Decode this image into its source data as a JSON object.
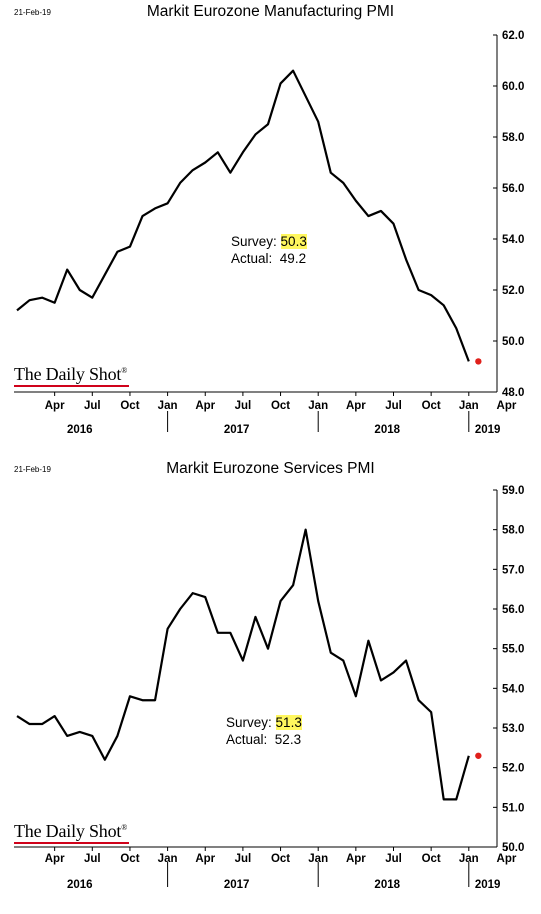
{
  "chart_data": [
    {
      "type": "line",
      "date_stamp": "21-Feb-19",
      "title": "Markit Eurozone Manufacturing PMI",
      "brand": "The Daily Shot",
      "brand_mark": "®",
      "annotation": {
        "survey_label": "Survey:",
        "survey_value": "50.3",
        "actual_label": "Actual:",
        "actual_value": "49.2"
      },
      "y_axis": {
        "side": "right",
        "min": 48,
        "max": 62,
        "ticks": [
          "62.0",
          "60.0",
          "58.0",
          "56.0",
          "54.0",
          "52.0",
          "50.0",
          "48.0"
        ]
      },
      "x_axis": {
        "month_ticks": [
          "Apr",
          "Jul",
          "Oct",
          "Jan",
          "Apr",
          "Jul",
          "Oct",
          "Jan",
          "Apr",
          "Jul",
          "Oct",
          "Jan",
          "Apr"
        ],
        "years": [
          "2016",
          "2017",
          "2018",
          "2019"
        ]
      },
      "grid": false,
      "series": [
        {
          "x": [
            "2016-01",
            "2016-02",
            "2016-03",
            "2016-04",
            "2016-05",
            "2016-06",
            "2016-07",
            "2016-08",
            "2016-09",
            "2016-10",
            "2016-11",
            "2016-12",
            "2017-01",
            "2017-02",
            "2017-03",
            "2017-04",
            "2017-05",
            "2017-06",
            "2017-07",
            "2017-08",
            "2017-09",
            "2017-10",
            "2017-11",
            "2017-12",
            "2018-01",
            "2018-02",
            "2018-03",
            "2018-04",
            "2018-05",
            "2018-06",
            "2018-07",
            "2018-08",
            "2018-09",
            "2018-10",
            "2018-11",
            "2018-12",
            "2019-01",
            "2019-02"
          ],
          "values": [
            51.2,
            51.6,
            51.7,
            51.5,
            52.8,
            52.0,
            51.7,
            52.6,
            53.5,
            53.7,
            54.9,
            55.2,
            55.4,
            56.2,
            56.7,
            57.0,
            57.4,
            56.6,
            57.4,
            58.1,
            58.5,
            60.1,
            60.6,
            59.6,
            58.6,
            56.6,
            56.2,
            55.5,
            54.9,
            55.1,
            54.6,
            53.2,
            52.0,
            51.8,
            51.4,
            50.5,
            49.2,
            49.2
          ],
          "color": "#000000",
          "last_point_color": "#e0201b"
        }
      ]
    },
    {
      "type": "line",
      "date_stamp": "21-Feb-19",
      "title": "Markit Eurozone Services PMI",
      "brand": "The Daily Shot",
      "brand_mark": "®",
      "annotation": {
        "survey_label": "Survey:",
        "survey_value": "51.3",
        "actual_label": "Actual:",
        "actual_value": "52.3"
      },
      "y_axis": {
        "side": "right",
        "min": 50,
        "max": 59,
        "ticks": [
          "59.0",
          "58.0",
          "57.0",
          "56.0",
          "55.0",
          "54.0",
          "53.0",
          "52.0",
          "51.0",
          "50.0"
        ]
      },
      "x_axis": {
        "month_ticks": [
          "Apr",
          "Jul",
          "Oct",
          "Jan",
          "Apr",
          "Jul",
          "Oct",
          "Jan",
          "Apr",
          "Jul",
          "Oct",
          "Jan",
          "Apr"
        ],
        "years": [
          "2016",
          "2017",
          "2018",
          "2019"
        ]
      },
      "grid": false,
      "series": [
        {
          "x": [
            "2016-01",
            "2016-02",
            "2016-03",
            "2016-04",
            "2016-05",
            "2016-06",
            "2016-07",
            "2016-08",
            "2016-09",
            "2016-10",
            "2016-11",
            "2016-12",
            "2017-01",
            "2017-02",
            "2017-03",
            "2017-04",
            "2017-05",
            "2017-06",
            "2017-07",
            "2017-08",
            "2017-09",
            "2017-10",
            "2017-11",
            "2017-12",
            "2018-01",
            "2018-02",
            "2018-03",
            "2018-04",
            "2018-05",
            "2018-06",
            "2018-07",
            "2018-08",
            "2018-09",
            "2018-10",
            "2018-11",
            "2018-12",
            "2019-01",
            "2019-02"
          ],
          "values": [
            53.3,
            53.1,
            53.1,
            53.3,
            52.8,
            52.9,
            52.8,
            52.2,
            52.8,
            53.8,
            53.7,
            53.7,
            55.5,
            56.0,
            56.4,
            56.3,
            55.4,
            55.4,
            54.7,
            55.8,
            55.0,
            56.2,
            56.6,
            58.0,
            56.2,
            54.9,
            54.7,
            53.8,
            55.2,
            54.2,
            54.4,
            54.7,
            53.7,
            53.4,
            51.2,
            51.2,
            52.3,
            52.3
          ],
          "color": "#000000",
          "last_point_color": "#e0201b"
        }
      ]
    }
  ]
}
